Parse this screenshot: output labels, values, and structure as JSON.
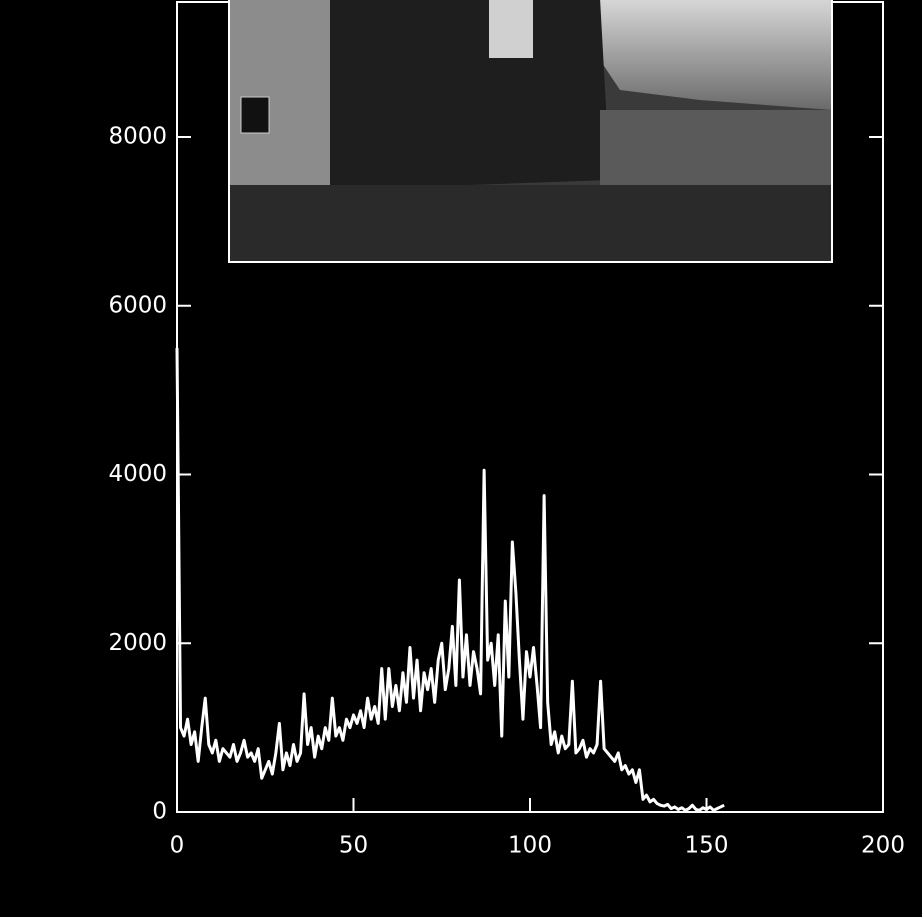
{
  "chart_data": {
    "type": "line",
    "color": "#ffffff",
    "xlim": [
      0,
      200
    ],
    "xticks": [
      0,
      50,
      100,
      150,
      200
    ],
    "ylim": [
      0,
      9600
    ],
    "yticks": [
      0,
      2000,
      4000,
      6000,
      8000
    ],
    "x": [
      0,
      1,
      2,
      3,
      4,
      5,
      6,
      7,
      8,
      9,
      10,
      11,
      12,
      13,
      14,
      15,
      16,
      17,
      18,
      19,
      20,
      21,
      22,
      23,
      24,
      25,
      26,
      27,
      28,
      29,
      30,
      31,
      32,
      33,
      34,
      35,
      36,
      37,
      38,
      39,
      40,
      41,
      42,
      43,
      44,
      45,
      46,
      47,
      48,
      49,
      50,
      51,
      52,
      53,
      54,
      55,
      56,
      57,
      58,
      59,
      60,
      61,
      62,
      63,
      64,
      65,
      66,
      67,
      68,
      69,
      70,
      71,
      72,
      73,
      74,
      75,
      76,
      77,
      78,
      79,
      80,
      81,
      82,
      83,
      84,
      85,
      86,
      87,
      88,
      89,
      90,
      91,
      92,
      93,
      94,
      95,
      96,
      97,
      98,
      99,
      100,
      101,
      102,
      103,
      104,
      105,
      106,
      107,
      108,
      109,
      110,
      111,
      112,
      113,
      114,
      115,
      116,
      117,
      118,
      119,
      120,
      121,
      122,
      123,
      124,
      125,
      126,
      127,
      128,
      129,
      130,
      131,
      132,
      133,
      134,
      135,
      136,
      137,
      138,
      139,
      140,
      141,
      142,
      143,
      144,
      145,
      146,
      147,
      148,
      149,
      150,
      151,
      152,
      153,
      154,
      155
    ],
    "values": [
      5500,
      1000,
      900,
      1100,
      800,
      950,
      600,
      1000,
      1350,
      800,
      700,
      850,
      600,
      750,
      700,
      650,
      800,
      600,
      700,
      850,
      650,
      700,
      600,
      750,
      400,
      500,
      600,
      450,
      700,
      1050,
      500,
      700,
      550,
      800,
      600,
      700,
      1400,
      800,
      1000,
      650,
      900,
      750,
      1000,
      850,
      1350,
      900,
      1000,
      850,
      1100,
      1000,
      1150,
      1050,
      1200,
      1000,
      1350,
      1100,
      1250,
      1050,
      1700,
      1100,
      1700,
      1250,
      1500,
      1200,
      1650,
      1300,
      1950,
      1350,
      1800,
      1200,
      1650,
      1450,
      1700,
      1300,
      1800,
      2000,
      1450,
      1700,
      2200,
      1500,
      2750,
      1600,
      2100,
      1500,
      1900,
      1700,
      1400,
      4050,
      1800,
      2000,
      1500,
      2100,
      900,
      2500,
      1600,
      3200,
      2600,
      1800,
      1100,
      1900,
      1600,
      1950,
      1500,
      1000,
      3750,
      1300,
      800,
      950,
      700,
      900,
      750,
      800,
      1550,
      700,
      750,
      850,
      650,
      750,
      700,
      800,
      1550,
      750,
      700,
      650,
      600,
      700,
      500,
      550,
      450,
      500,
      350,
      500,
      150,
      200,
      120,
      150,
      100,
      80,
      70,
      90,
      40,
      60,
      30,
      50,
      20,
      40,
      80,
      30,
      20,
      50,
      30,
      60,
      20,
      40,
      60,
      80
    ]
  }
}
